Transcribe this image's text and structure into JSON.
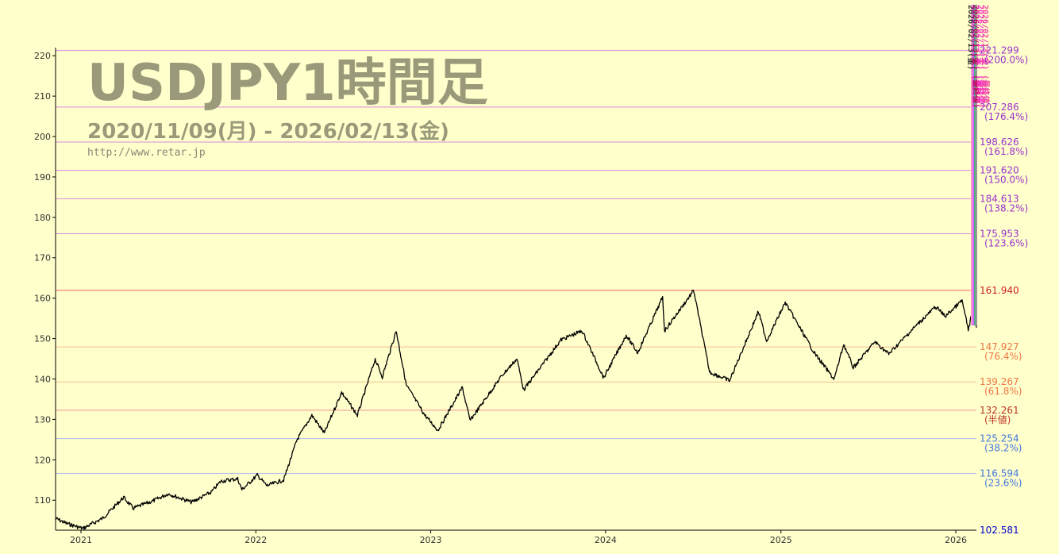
{
  "header": {
    "title": "USDJPY1時間足",
    "date_range": "2020/11/09(月) - 2026/02/13(金)",
    "url": "http://www.retar.jp"
  },
  "chart_data": {
    "type": "line",
    "ylim": [
      102.581,
      222
    ],
    "y_ticks": [
      110,
      120,
      130,
      140,
      150,
      160,
      170,
      180,
      190,
      200,
      210,
      220
    ],
    "x_ticks": [
      "2021",
      "2022",
      "2023",
      "2024",
      "2025",
      "2026"
    ],
    "xlim": [
      "2020-11-09",
      "2026-02-13"
    ],
    "series": [
      {
        "color": "#000000",
        "points": [
          [
            "2020-11-09",
            105.5
          ],
          [
            "2020-12-01",
            104.3
          ],
          [
            "2021-01-05",
            103.0
          ],
          [
            "2021-02-15",
            105.5
          ],
          [
            "2021-03-31",
            110.7
          ],
          [
            "2021-04-20",
            108.0
          ],
          [
            "2021-05-31",
            109.8
          ],
          [
            "2021-07-02",
            111.6
          ],
          [
            "2021-08-20",
            109.5
          ],
          [
            "2021-09-30",
            112.0
          ],
          [
            "2021-10-20",
            114.7
          ],
          [
            "2021-11-24",
            115.3
          ],
          [
            "2021-12-03",
            112.6
          ],
          [
            "2022-01-04",
            116.2
          ],
          [
            "2022-01-24",
            113.6
          ],
          [
            "2022-02-28",
            115.0
          ],
          [
            "2022-03-28",
            125.0
          ],
          [
            "2022-04-28",
            131.0
          ],
          [
            "2022-05-24",
            126.6
          ],
          [
            "2022-06-29",
            136.7
          ],
          [
            "2022-08-01",
            131.0
          ],
          [
            "2022-09-07",
            144.9
          ],
          [
            "2022-09-22",
            140.5
          ],
          [
            "2022-10-21",
            151.9
          ],
          [
            "2022-11-11",
            138.5
          ],
          [
            "2022-12-20",
            131.0
          ],
          [
            "2023-01-16",
            127.3
          ],
          [
            "2023-03-08",
            137.9
          ],
          [
            "2023-03-24",
            129.7
          ],
          [
            "2023-05-30",
            140.9
          ],
          [
            "2023-06-30",
            145.0
          ],
          [
            "2023-07-14",
            137.3
          ],
          [
            "2023-09-30",
            149.7
          ],
          [
            "2023-11-13",
            151.9
          ],
          [
            "2023-12-28",
            140.3
          ],
          [
            "2024-02-13",
            150.8
          ],
          [
            "2024-03-08",
            146.5
          ],
          [
            "2024-04-29",
            160.2
          ],
          [
            "2024-05-03",
            151.9
          ],
          [
            "2024-07-03",
            161.9
          ],
          [
            "2024-08-05",
            141.7
          ],
          [
            "2024-09-16",
            139.6
          ],
          [
            "2024-11-15",
            156.7
          ],
          [
            "2024-12-02",
            149.4
          ],
          [
            "2025-01-10",
            158.9
          ],
          [
            "2025-03-11",
            146.6
          ],
          [
            "2025-04-22",
            139.9
          ],
          [
            "2025-05-12",
            148.6
          ],
          [
            "2025-06-01",
            142.8
          ],
          [
            "2025-07-16",
            149.2
          ],
          [
            "2025-08-14",
            146.2
          ],
          [
            "2025-10-10",
            153.2
          ],
          [
            "2025-11-20",
            157.9
          ],
          [
            "2025-12-10",
            155.5
          ],
          [
            "2026-01-14",
            159.4
          ],
          [
            "2026-01-27",
            152.2
          ],
          [
            "2026-02-06",
            157.3
          ],
          [
            "2026-02-13",
            152.7
          ]
        ]
      }
    ],
    "levels": [
      {
        "value": 221.299,
        "label": "221.299",
        "pct": "(200.0%)",
        "color": "#9933cc",
        "line": "#dd88dd"
      },
      {
        "value": 207.286,
        "label": "207.286",
        "pct": "(176.4%)",
        "color": "#9933cc",
        "line": "#dd88dd"
      },
      {
        "value": 198.626,
        "label": "198.626",
        "pct": "(161.8%)",
        "color": "#9933cc",
        "line": "#dd88dd"
      },
      {
        "value": 191.62,
        "label": "191.620",
        "pct": "(150.0%)",
        "color": "#9933cc",
        "line": "#dd88dd"
      },
      {
        "value": 184.613,
        "label": "184.613",
        "pct": "(138.2%)",
        "color": "#9933cc",
        "line": "#dd88dd"
      },
      {
        "value": 175.953,
        "label": "175.953",
        "pct": "(123.6%)",
        "color": "#9933cc",
        "line": "#dd88dd"
      },
      {
        "value": 161.94,
        "label": "161.940",
        "pct": "",
        "color": "#cc2222",
        "line": "#ff6666"
      },
      {
        "value": 147.927,
        "label": "147.927",
        "pct": "(76.4%)",
        "color": "#ee7744",
        "line": "#f0c090"
      },
      {
        "value": 139.267,
        "label": "139.267",
        "pct": "(61.8%)",
        "color": "#ee7744",
        "line": "#f0c090"
      },
      {
        "value": 132.261,
        "label": "132.261",
        "pct": "(半値)",
        "color": "#bb3322",
        "line": "#f09090"
      },
      {
        "value": 125.254,
        "label": "125.254",
        "pct": "(38.2%)",
        "color": "#4477dd",
        "line": "#aabbee"
      },
      {
        "value": 116.594,
        "label": "116.594",
        "pct": "(23.6%)",
        "color": "#4477dd",
        "line": "#aabbee"
      },
      {
        "value": 102.581,
        "label": "102.581",
        "pct": "",
        "color": "#0000cc",
        "line": "#6666ff"
      }
    ],
    "vertical_labels": [
      {
        "text": "2026/02/13(金)",
        "color": "#333333"
      },
      {
        "text": "2026/02/13(金) (最終値)",
        "color": "#cc0066"
      },
      {
        "text": "2026/02/13(金) (最終値)",
        "color": "#ff33cc"
      },
      {
        "text": "2026/02/13(金) (最終値)",
        "color": "#ee44aa"
      }
    ]
  }
}
